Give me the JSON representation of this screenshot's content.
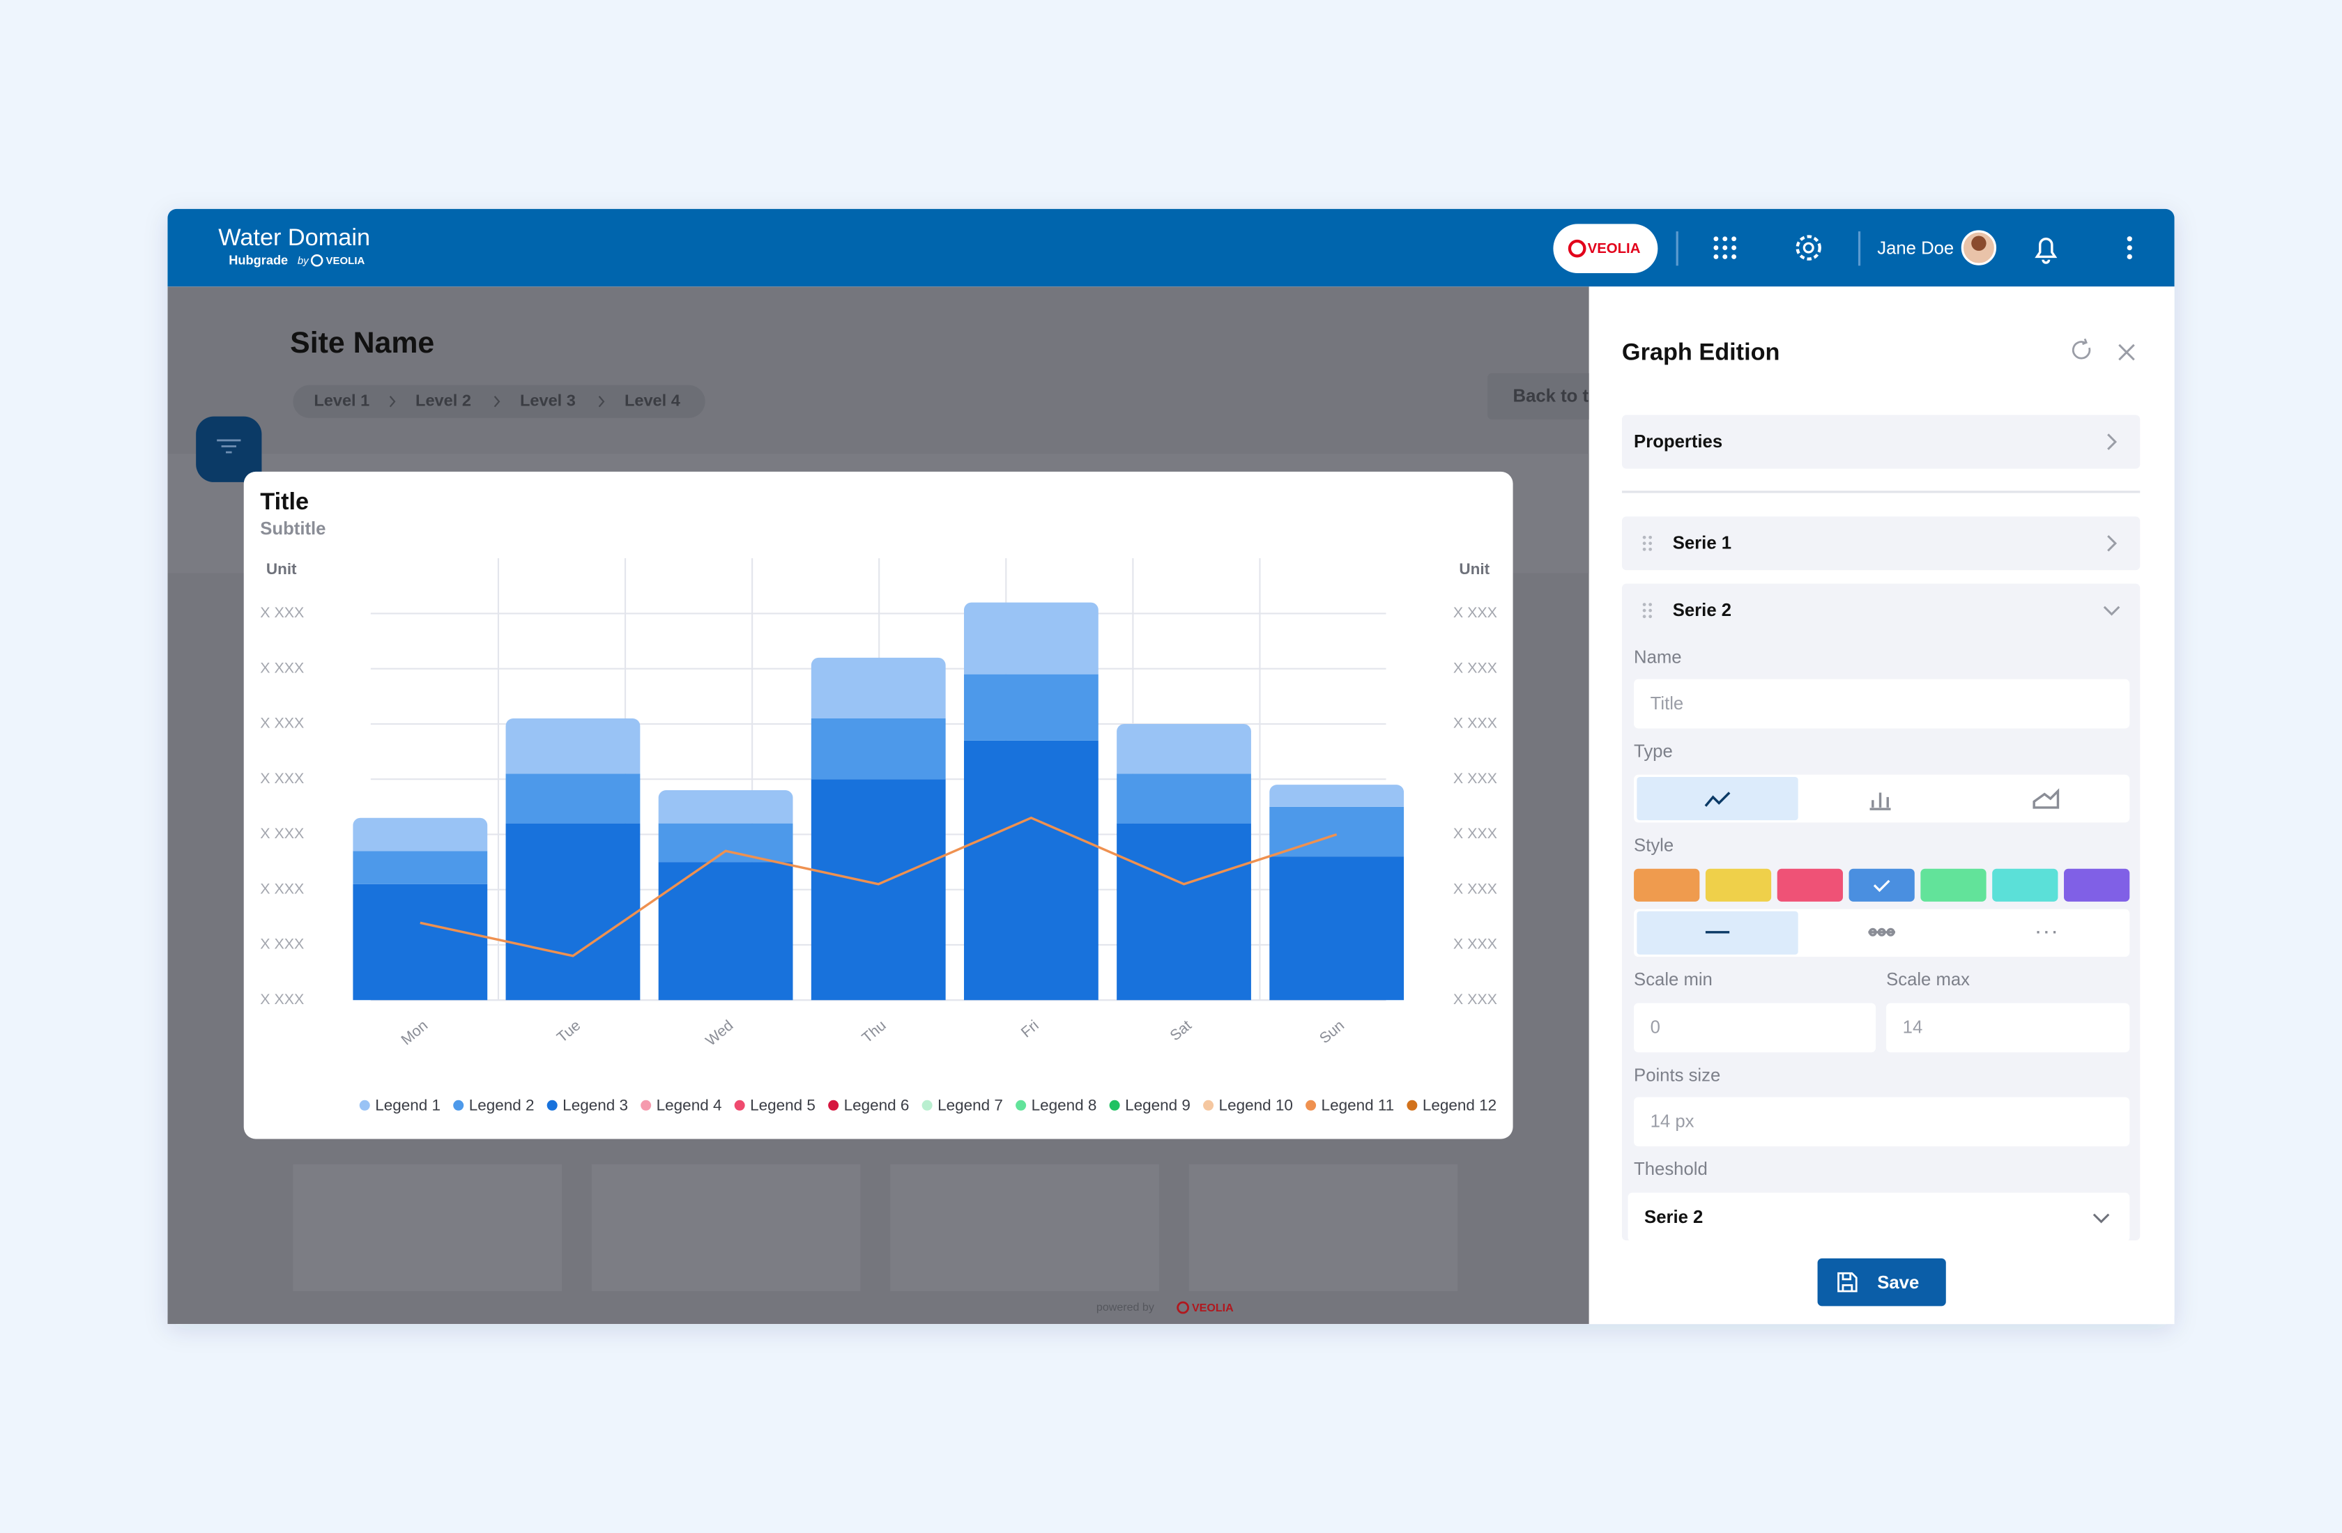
{
  "header": {
    "app_title": "Water Domain",
    "product": "Hubgrade",
    "by": "by",
    "brand": "VEOLIA",
    "badge": "VEOLIA",
    "user": "Jane Doe"
  },
  "page": {
    "site_name": "Site Name",
    "breadcrumb": [
      "Level 1",
      "Level 2",
      "Level 3",
      "Level 4"
    ],
    "back_button": "Back to t",
    "footer_text": "powered by",
    "footer_brand": "VEOLIA"
  },
  "chart_data": {
    "type": "bar",
    "stacked": true,
    "title": "Title",
    "subtitle": "Subtitle",
    "y_unit": "Unit",
    "y2_unit": "Unit",
    "categories": [
      "Mon",
      "Tue",
      "Wed",
      "Thu",
      "Fri",
      "Sat",
      "Sun"
    ],
    "ylim": [
      0,
      8
    ],
    "yticks": [
      {
        "value": 0,
        "label": "X XXX"
      },
      {
        "value": 1,
        "label": "X XXX"
      },
      {
        "value": 2,
        "label": "X XXX"
      },
      {
        "value": 3,
        "label": "X XXX"
      },
      {
        "value": 4,
        "label": "X XXX"
      },
      {
        "value": 5,
        "label": "X XXX"
      },
      {
        "value": 6,
        "label": "X XXX"
      },
      {
        "value": 7,
        "label": "X XXX"
      }
    ],
    "y2lim": [
      0,
      8
    ],
    "y2ticks": [
      {
        "value": 0,
        "label": "X XXX"
      },
      {
        "value": 1,
        "label": "X XXX"
      },
      {
        "value": 2,
        "label": "X XXX"
      },
      {
        "value": 3,
        "label": "X XXX"
      },
      {
        "value": 4,
        "label": "X XXX"
      },
      {
        "value": 5,
        "label": "X XXX"
      },
      {
        "value": 6,
        "label": "X XXX"
      },
      {
        "value": 7,
        "label": "X XXX"
      }
    ],
    "grid": true,
    "series": [
      {
        "name": "Legend 3",
        "color": "#1872dc",
        "type": "bar",
        "values": [
          2.1,
          3.2,
          2.5,
          4.0,
          4.7,
          3.2,
          2.6
        ]
      },
      {
        "name": "Legend 2",
        "color": "#4d99ea",
        "type": "bar",
        "values": [
          0.6,
          0.9,
          0.7,
          1.1,
          1.2,
          0.9,
          0.9
        ]
      },
      {
        "name": "Legend 1",
        "color": "#99c3f5",
        "type": "bar",
        "values": [
          0.6,
          1.0,
          0.6,
          1.1,
          1.3,
          0.9,
          0.4
        ]
      },
      {
        "name": "Legend 11",
        "color": "#ef9150",
        "type": "line",
        "values": [
          1.4,
          0.8,
          2.7,
          2.1,
          3.3,
          2.1,
          3.0
        ]
      }
    ],
    "legend": {
      "position": "bottom",
      "items": [
        {
          "name": "Legend 1",
          "color": "#99c3f5"
        },
        {
          "name": "Legend 2",
          "color": "#4d99ea"
        },
        {
          "name": "Legend 3",
          "color": "#1872dc"
        },
        {
          "name": "Legend 4",
          "color": "#f59aad"
        },
        {
          "name": "Legend 5",
          "color": "#ef4a6e"
        },
        {
          "name": "Legend 6",
          "color": "#d6163f"
        },
        {
          "name": "Legend 7",
          "color": "#b9efd0"
        },
        {
          "name": "Legend 8",
          "color": "#62e39a"
        },
        {
          "name": "Legend 9",
          "color": "#20c262"
        },
        {
          "name": "Legend 10",
          "color": "#f5c7a0"
        },
        {
          "name": "Legend 11",
          "color": "#ef9150"
        },
        {
          "name": "Legend 12",
          "color": "#d2721c"
        }
      ]
    }
  },
  "panel": {
    "title": "Graph Edition",
    "properties": "Properties",
    "serie1": "Serie 1",
    "serie2": "Serie 2",
    "name_label": "Name",
    "name_placeholder": "Title",
    "type_label": "Type",
    "style_label": "Style",
    "swatches": [
      "#ef9b4e",
      "#efd04a",
      "#ef5276",
      "#4a8fe0",
      "#62e39a",
      "#5be0d8",
      "#8060e6"
    ],
    "scale_min_label": "Scale min",
    "scale_min": 0,
    "scale_max_label": "Scale max",
    "scale_max": 14,
    "points_size_label": "Points size",
    "points_size": "14 px",
    "threshold_label": "Theshold",
    "threshold_value": "Serie 2",
    "save": "Save"
  }
}
